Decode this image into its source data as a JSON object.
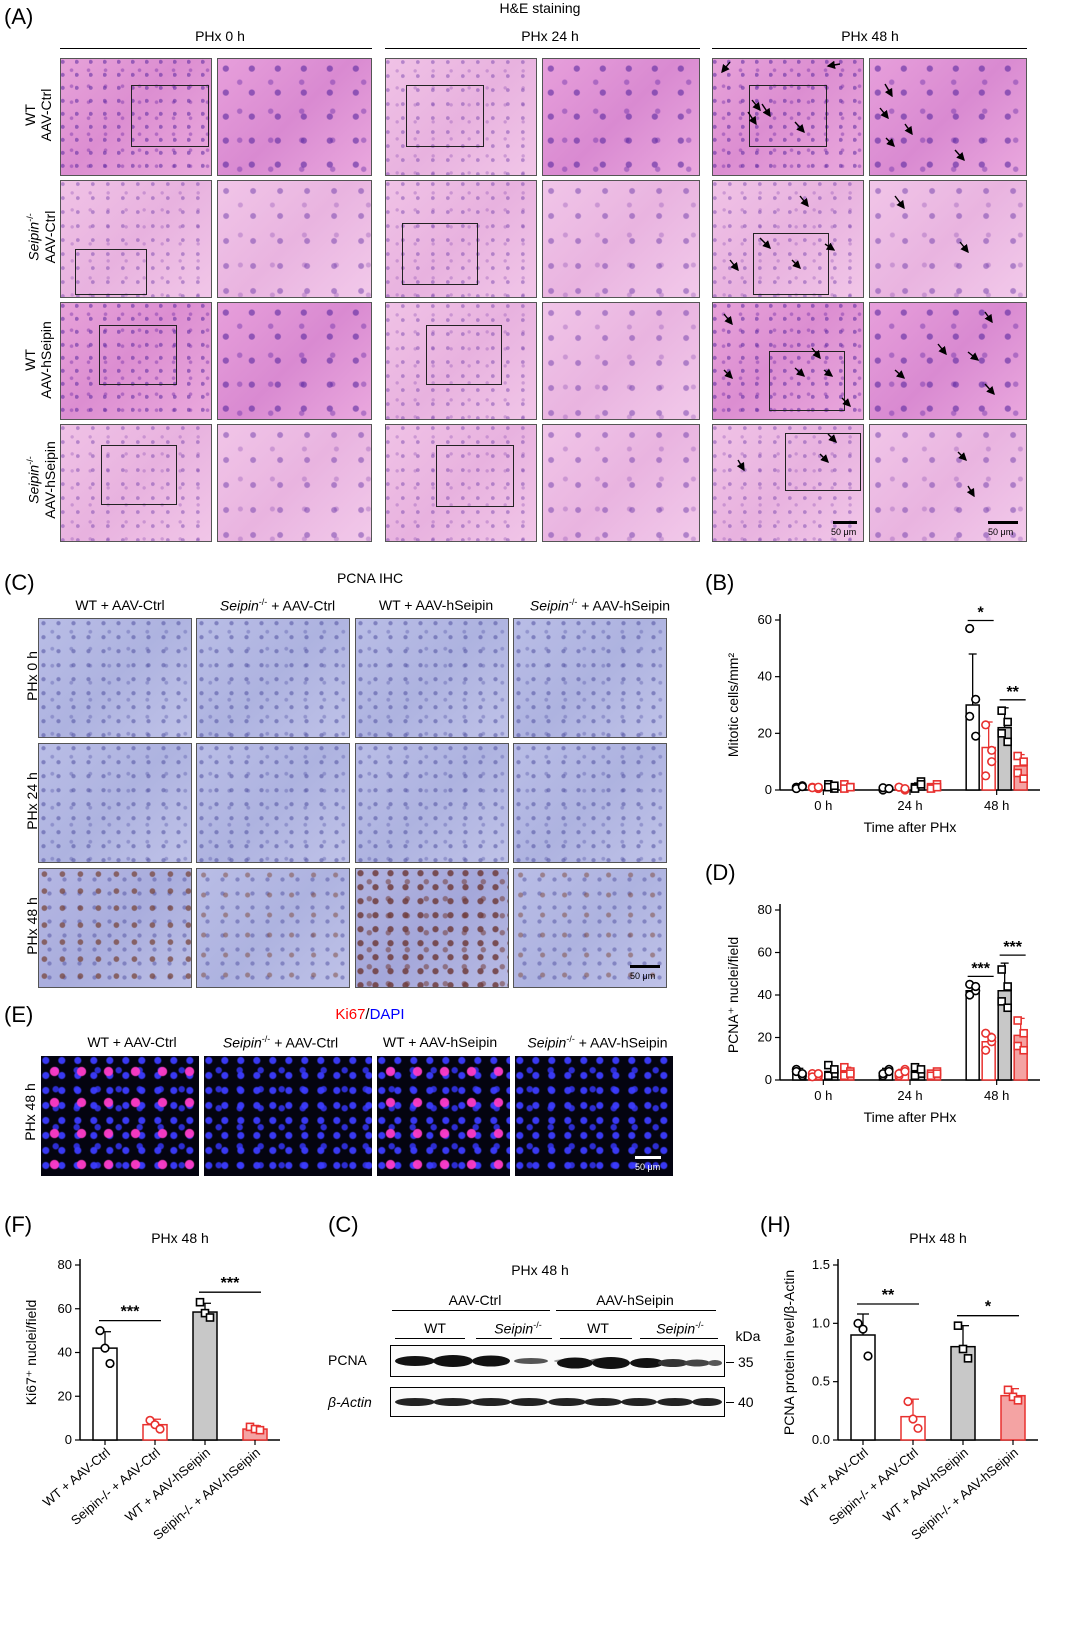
{
  "panelA": {
    "letter": "(A)",
    "title": "H&E staining",
    "timepoints": [
      "PHx 0 h",
      "PHx 24 h",
      "PHx 48 h"
    ],
    "rows": [
      {
        "line1": "WT",
        "line2": "AAV-Ctrl"
      },
      {
        "line1": "Seipin",
        "sup": "-/-",
        "line2": "AAV-Ctrl"
      },
      {
        "line1": "WT",
        "line2": "AAV-hSeipin"
      },
      {
        "line1": "Seipin",
        "sup": "-/-",
        "line2": "AAV-hSeipin"
      }
    ],
    "scale1": "50 μm",
    "scale2": "50 μm"
  },
  "panelC": {
    "letter": "(C)",
    "title": "PCNA IHC",
    "groups": [
      "WT + AAV-Ctrl",
      "Seipin",
      "+ AAV-Ctrl",
      "WT + AAV-hSeipin",
      "Seipin",
      "+ AAV-hSeipin"
    ],
    "sup": "-/-",
    "rows": [
      "PHx 0 h",
      "PHx 24 h",
      "PHx 48 h"
    ],
    "scale": "50 μm"
  },
  "panelE": {
    "letter": "(E)",
    "title_red": "Ki67",
    "title_sep": "/",
    "title_blue": "DAPI",
    "row": "PHx 48 h",
    "scale": "50 μm",
    "colors": {
      "ki67": "#ff0000",
      "dapi": "#0000ff"
    }
  },
  "panelG": {
    "letter": "(C)",
    "title": "PHx 48 h",
    "group1": "AAV-Ctrl",
    "group2": "AAV-hSeipin",
    "lanes": [
      "WT",
      "Seipin",
      "WT",
      "Seipin"
    ],
    "sup": "-/-",
    "kda": "kDa",
    "bands": [
      {
        "name": "PCNA",
        "mw": "35"
      },
      {
        "name": "β-Actin",
        "mw": "40"
      }
    ]
  },
  "chart_data": [
    {
      "id": "B",
      "letter": "(B)",
      "type": "bar",
      "ylabel": "Mitotic cells/mm²",
      "xlabel": "Time after PHx",
      "categories": [
        "0 h",
        "24 h",
        "48 h"
      ],
      "ylim": [
        0,
        60
      ],
      "yticks": [
        0,
        20,
        40,
        60
      ],
      "series": [
        {
          "name": "WT + AAV-Ctrl",
          "values": [
            1.0,
            0.5,
            30
          ],
          "err": [
            0.5,
            0.3,
            18
          ],
          "points": [
            [
              1,
              1.5,
              0.5,
              1.2
            ],
            [
              0,
              0.5,
              0.8,
              0.5
            ],
            [
              57,
              32,
              26,
              19
            ]
          ]
        },
        {
          "name": "Seipin-/- + AAV-Ctrl",
          "values": [
            0.8,
            0.6,
            15
          ],
          "err": [
            0.4,
            0.4,
            9
          ],
          "points": [
            [
              1,
              0.5,
              0.8,
              1
            ],
            [
              1,
              0,
              1,
              0.5
            ],
            [
              23,
              14,
              5,
              10
            ]
          ]
        },
        {
          "name": "WT + AAV-hSeipin",
          "values": [
            1.2,
            1.5,
            22
          ],
          "err": [
            0.5,
            1.0,
            7
          ],
          "points": [
            [
              2,
              0.5,
              1,
              1.5
            ],
            [
              1,
              3,
              0.5,
              2
            ],
            [
              28,
              24,
              20,
              17
            ]
          ]
        },
        {
          "name": "Seipin-/- + AAV-hSeipin",
          "values": [
            1.0,
            1.0,
            8.5
          ],
          "err": [
            0.6,
            0.8,
            4
          ],
          "points": [
            [
              2,
              1,
              0.5,
              1
            ],
            [
              1,
              2,
              0.5,
              1
            ],
            [
              12,
              10,
              6,
              4
            ]
          ]
        }
      ],
      "significance": [
        {
          "group": "48 h",
          "pair": [
            0,
            1
          ],
          "label": "*"
        },
        {
          "group": "48 h",
          "pair": [
            2,
            3
          ],
          "label": "**"
        }
      ]
    },
    {
      "id": "D",
      "letter": "(D)",
      "type": "bar",
      "ylabel": "PCNA⁺ nuclei/field",
      "xlabel": "Time after PHx",
      "categories": [
        "0 h",
        "24 h",
        "48 h"
      ],
      "ylim": [
        0,
        80
      ],
      "yticks": [
        0,
        20,
        40,
        60,
        80
      ],
      "series": [
        {
          "name": "WT + AAV-Ctrl",
          "values": [
            3.5,
            3.5,
            42
          ],
          "err": [
            2,
            2,
            3
          ],
          "points": [
            [
              5,
              2,
              4,
              3
            ],
            [
              2,
              5,
              3,
              4
            ],
            [
              45,
              42,
              40,
              44
            ]
          ]
        },
        {
          "name": "Seipin-/- + AAV-Ctrl",
          "values": [
            2.5,
            3.5,
            18
          ],
          "err": [
            1.5,
            1.5,
            4
          ],
          "points": [
            [
              3,
              2,
              1.5,
              3
            ],
            [
              2,
              5,
              3,
              4
            ],
            [
              22,
              18,
              14,
              20
            ]
          ]
        },
        {
          "name": "WT + AAV-hSeipin",
          "values": [
            4,
            4,
            42
          ],
          "err": [
            2.5,
            2,
            13
          ],
          "points": [
            [
              7,
              3,
              2,
              5
            ],
            [
              6,
              3,
              2,
              5
            ],
            [
              52,
              44,
              37,
              34
            ]
          ]
        },
        {
          "name": "Seipin-/- + AAV-hSeipin",
          "values": [
            4,
            3,
            21
          ],
          "err": [
            2,
            1.5,
            8
          ],
          "points": [
            [
              6,
              4,
              2,
              3
            ],
            [
              3,
              4,
              2,
              3
            ],
            [
              28,
              22,
              16,
              14
            ]
          ]
        }
      ],
      "significance": [
        {
          "group": "48 h",
          "pair": [
            0,
            1
          ],
          "label": "***"
        },
        {
          "group": "48 h",
          "pair": [
            2,
            3
          ],
          "label": "***"
        }
      ]
    },
    {
      "id": "F",
      "letter": "(F)",
      "type": "bar",
      "title": "PHx 48 h",
      "ylabel": "Ki67⁺ nuclei/field",
      "categories": [
        "WT + AAV-Ctrl",
        "Seipin-/- + AAV-Ctrl",
        "WT + AAV-hSeipin",
        "Seipin-/- + AAV-hSeipin"
      ],
      "ylim": [
        0,
        80
      ],
      "yticks": [
        0,
        20,
        40,
        60,
        80
      ],
      "values": [
        42,
        7,
        58.5,
        5
      ],
      "err": [
        7.5,
        2.5,
        4,
        1.5
      ],
      "points": [
        [
          50,
          42,
          35
        ],
        [
          9,
          7,
          5
        ],
        [
          63,
          58,
          56
        ],
        [
          6,
          5,
          4.5
        ]
      ],
      "significance": [
        {
          "pair": [
            0,
            1
          ],
          "label": "***"
        },
        {
          "pair": [
            2,
            3
          ],
          "label": "***"
        }
      ]
    },
    {
      "id": "H",
      "letter": "(H)",
      "type": "bar",
      "title": "PHx 48 h",
      "ylabel": "PCNA protein level/β-Actin",
      "categories": [
        "WT + AAV-Ctrl",
        "Seipin-/- + AAV-Ctrl",
        "WT + AAV-hSeipin",
        "Seipin-/- + AAV-hSeipin"
      ],
      "ylim": [
        0,
        1.5
      ],
      "yticks": [
        "0.0",
        "0.5",
        "1.0",
        "1.5"
      ],
      "values": [
        0.9,
        0.2,
        0.8,
        0.38
      ],
      "err": [
        0.18,
        0.15,
        0.18,
        0.06
      ],
      "points": [
        [
          1.0,
          0.95,
          0.72
        ],
        [
          0.33,
          0.18,
          0.1
        ],
        [
          0.98,
          0.78,
          0.7
        ],
        [
          0.43,
          0.37,
          0.34
        ]
      ],
      "significance": [
        {
          "pair": [
            0,
            1
          ],
          "label": "**"
        },
        {
          "pair": [
            2,
            3
          ],
          "label": "*"
        }
      ]
    }
  ],
  "colors": {
    "black": "#000000",
    "red": "#e8312f",
    "gray": "#c8c8c8",
    "lightred": "#f4a3a3"
  }
}
